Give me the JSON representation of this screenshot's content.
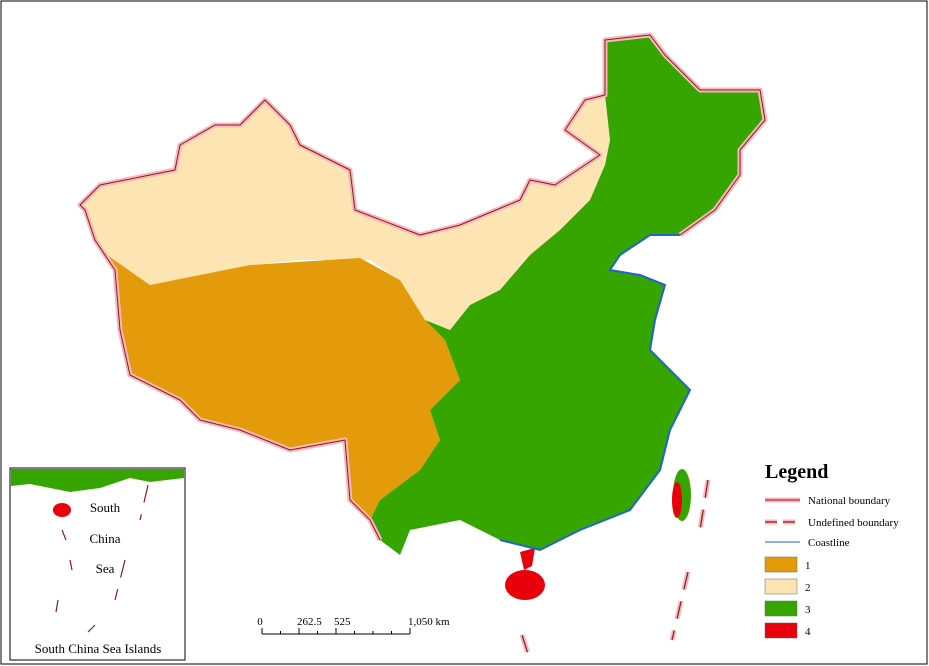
{
  "legend": {
    "title": "Legend",
    "lines": [
      "National boundary",
      "Undefined boundary",
      "Coastline"
    ],
    "zones": [
      {
        "label": "1",
        "color": "#e39b0b"
      },
      {
        "label": "2",
        "color": "#fde4b3"
      },
      {
        "label": "3",
        "color": "#36a500"
      },
      {
        "label": "4",
        "color": "#e8000b"
      }
    ]
  },
  "scale_bar": {
    "ticks": [
      0,
      262.5,
      525,
      {
        "value": 1050,
        "label": "1,050 km"
      }
    ]
  },
  "inset": {
    "labels": [
      "South",
      "China",
      "Sea"
    ],
    "title": "South China Sea Islands"
  }
}
